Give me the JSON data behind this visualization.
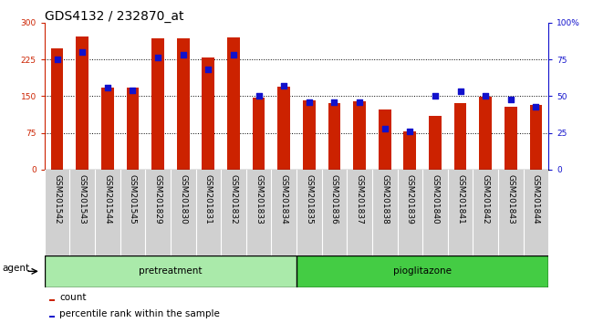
{
  "title": "GDS4132 / 232870_at",
  "samples": [
    "GSM201542",
    "GSM201543",
    "GSM201544",
    "GSM201545",
    "GSM201829",
    "GSM201830",
    "GSM201831",
    "GSM201832",
    "GSM201833",
    "GSM201834",
    "GSM201835",
    "GSM201836",
    "GSM201837",
    "GSM201838",
    "GSM201839",
    "GSM201840",
    "GSM201841",
    "GSM201842",
    "GSM201843",
    "GSM201844"
  ],
  "counts": [
    248,
    272,
    168,
    168,
    268,
    268,
    228,
    270,
    147,
    170,
    142,
    135,
    140,
    122,
    78,
    110,
    135,
    148,
    128,
    132
  ],
  "percentiles": [
    75,
    80,
    56,
    54,
    76,
    78,
    68,
    78,
    50,
    57,
    46,
    46,
    46,
    28,
    26,
    50,
    53,
    50,
    48,
    43
  ],
  "bar_color": "#cc2200",
  "dot_color": "#1111cc",
  "left_ylim": [
    0,
    300
  ],
  "left_yticks": [
    0,
    75,
    150,
    225,
    300
  ],
  "right_ylim": [
    0,
    100
  ],
  "right_yticks": [
    0,
    25,
    50,
    75,
    100
  ],
  "pretreatment_count": 10,
  "pioglitazone_label": "pioglitazone",
  "pretreatment_label": "pretreatment",
  "agent_label": "agent",
  "pretreatment_color": "#aaeaaa",
  "pioglitazone_color": "#44cc44",
  "legend_count_label": "count",
  "legend_pct_label": "percentile rank within the sample",
  "bar_width": 0.5,
  "title_fontsize": 10,
  "tick_fontsize": 6.5,
  "label_fontsize": 7.5,
  "legend_fontsize": 7.5
}
